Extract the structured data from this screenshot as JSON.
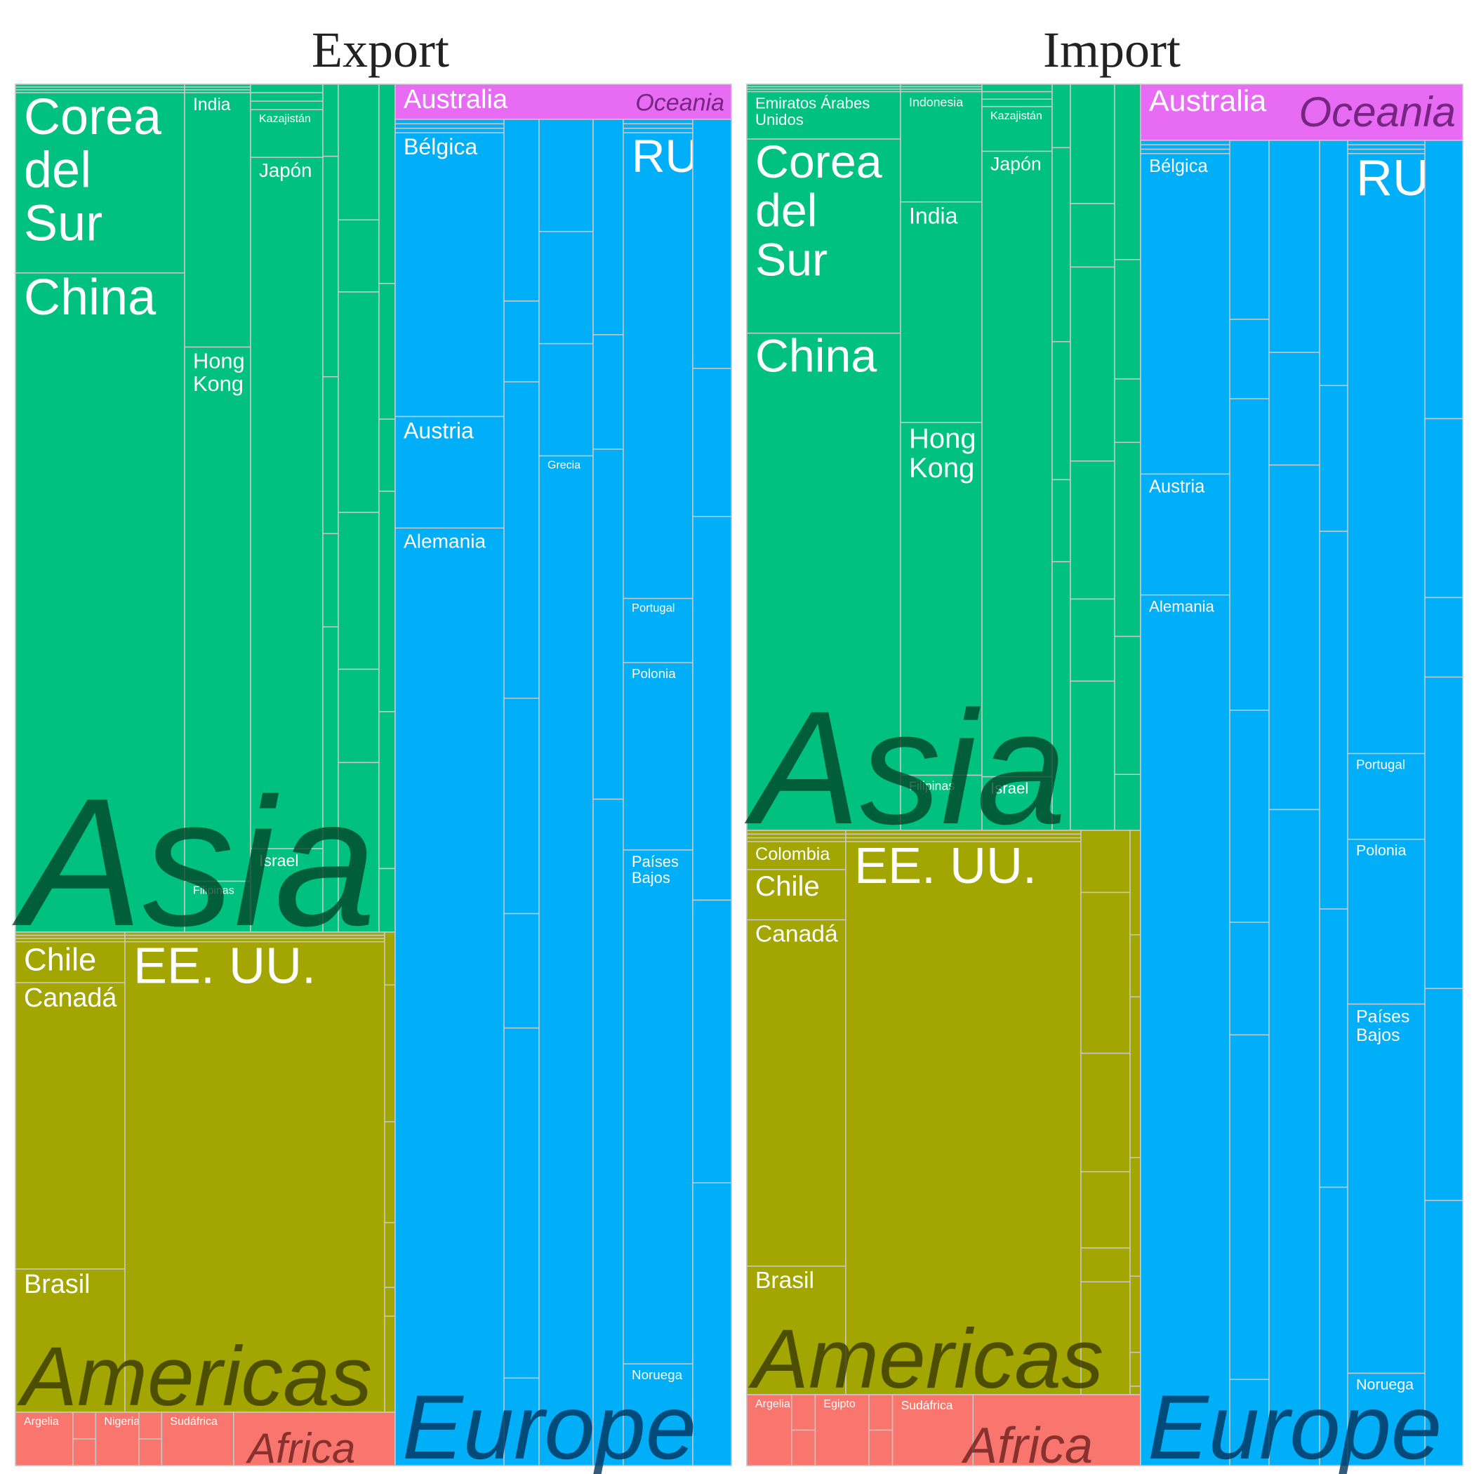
{
  "chart_data": {
    "type": "treemap",
    "colors": {
      "Asia": "#00C17F",
      "Americas": "#A3A500",
      "Europe": "#00AFF7",
      "Oceania": "#E76BF3",
      "Africa": "#F8766D",
      "border": "#c8c8c8",
      "label": "#ffffff"
    },
    "panels": [
      {
        "title": "Export",
        "groups": [
          {
            "region": "Asia",
            "label": "Asia",
            "tiles": [
              {
                "name": "Corea del Sur",
                "label": "Corea\ndel\nSur",
                "value": 3.8
              },
              {
                "name": "China",
                "label": "China",
                "value": 13.9
              },
              {
                "name": "India",
                "label": "India",
                "value": 3.0
              },
              {
                "name": "Hong Kong",
                "label": "Hong\nKong",
                "value": 6.3
              },
              {
                "name": "Filipinas",
                "label": "Filipinas",
                "value": 0.6
              },
              {
                "name": "Kazajistán",
                "label": "Kazajistán",
                "value": 0.4
              },
              {
                "name": "Japón",
                "label": "Japón",
                "value": 5.8
              },
              {
                "name": "Israel",
                "label": "Israel",
                "value": 0.7
              }
            ]
          },
          {
            "region": "Americas",
            "label": "Americas",
            "tiles": [
              {
                "name": "Chile",
                "label": "Chile",
                "value": 0.6
              },
              {
                "name": "Canadá",
                "label": "Canadá",
                "value": 4.2
              },
              {
                "name": "Brasil",
                "label": "Brasil",
                "value": 2.1
              },
              {
                "name": "EE. UU.",
                "label": "EE. UU.",
                "value": 14.5
              }
            ]
          },
          {
            "region": "Africa",
            "label": "Africa",
            "tiles": [
              {
                "name": "Argelia",
                "label": "Argelia",
                "value": 0.4
              },
              {
                "name": "Nigeria",
                "label": "Nigeria",
                "value": 0.3
              },
              {
                "name": "Sudáfrica",
                "label": "Sudáfrica",
                "value": 0.5
              }
            ]
          },
          {
            "region": "Oceania",
            "label": "Oceania",
            "tiles": [
              {
                "name": "Australia",
                "label": "Australia",
                "value": 1.0
              }
            ]
          },
          {
            "region": "Europe",
            "label": "Europe",
            "tiles": [
              {
                "name": "Bélgica",
                "label": "Bélgica",
                "value": 5.6
              },
              {
                "name": "Austria",
                "label": "Austria",
                "value": 2.2
              },
              {
                "name": "Alemania",
                "label": "Alemania",
                "value": 18.5
              },
              {
                "name": "Grecia",
                "label": "Grecia",
                "value": 0.7
              },
              {
                "name": "RU",
                "label": "RU",
                "value": 8.7
              },
              {
                "name": "Portugal",
                "label": "Portugal",
                "value": 1.2
              },
              {
                "name": "Polonia",
                "label": "Polonia",
                "value": 3.5
              },
              {
                "name": "Países Bajos",
                "label": "Países\nBajos",
                "value": 9.6
              },
              {
                "name": "Noruega",
                "label": "Noruega",
                "value": 1.9
              }
            ]
          }
        ]
      },
      {
        "title": "Import",
        "groups": [
          {
            "region": "Asia",
            "label": "Asia",
            "tiles": [
              {
                "name": "Emiratos Árabes Unidos",
                "label": "Emiratos Árabes\nUnidos",
                "value": 1.0
              },
              {
                "name": "Corea del Sur",
                "label": "Corea\ndel\nSur",
                "value": 4.1
              },
              {
                "name": "China",
                "label": "China",
                "value": 10.5
              },
              {
                "name": "Indonesia",
                "label": "Indonesia",
                "value": 2.0
              },
              {
                "name": "India",
                "label": "India",
                "value": 4.0
              },
              {
                "name": "Hong Kong",
                "label": "Hong\nKong",
                "value": 6.4
              },
              {
                "name": "Filipinas",
                "label": "Filipinas",
                "value": 1.0
              },
              {
                "name": "Kazajistán",
                "label": "Kazajistán",
                "value": 0.5
              },
              {
                "name": "Japón",
                "label": "Japón",
                "value": 7.0
              },
              {
                "name": "Israel",
                "label": "Israel",
                "value": 0.6
              }
            ]
          },
          {
            "region": "Americas",
            "label": "Americas",
            "tiles": [
              {
                "name": "Colombia",
                "label": "Colombia",
                "value": 0.5
              },
              {
                "name": "Chile",
                "label": "Chile",
                "value": 0.9
              },
              {
                "name": "Canadá",
                "label": "Canadá",
                "value": 6.2
              },
              {
                "name": "Brasil",
                "label": "Brasil",
                "value": 2.3
              },
              {
                "name": "EE. UU.",
                "label": "EE. UU.",
                "value": 14.9
              }
            ]
          },
          {
            "region": "Africa",
            "label": "Africa",
            "tiles": [
              {
                "name": "Argelia",
                "label": "Argelia",
                "value": 0.5
              },
              {
                "name": "Egipto",
                "label": "Egipto",
                "value": 0.6
              },
              {
                "name": "Sudáfrica",
                "label": "Sudáfrica",
                "value": 0.9
              }
            ]
          },
          {
            "region": "Oceania",
            "label": "Oceania",
            "tiles": [
              {
                "name": "Australia",
                "label": "Australia",
                "value": 1.7
              }
            ]
          },
          {
            "region": "Europe",
            "label": "Europe",
            "tiles": [
              {
                "name": "Bélgica",
                "label": "Bélgica",
                "value": 5.3
              },
              {
                "name": "Austria",
                "label": "Austria",
                "value": 2.0
              },
              {
                "name": "Alemania",
                "label": "Alemania",
                "value": 14.4
              },
              {
                "name": "RU",
                "label": "RU",
                "value": 9.1
              },
              {
                "name": "Portugal",
                "label": "Portugal",
                "value": 1.3
              },
              {
                "name": "Polonia",
                "label": "Polonia",
                "value": 2.5
              },
              {
                "name": "Países Bajos",
                "label": "Países\nBajos",
                "value": 5.6
              },
              {
                "name": "Noruega",
                "label": "Noruega",
                "value": 1.4
              }
            ]
          }
        ]
      }
    ]
  }
}
